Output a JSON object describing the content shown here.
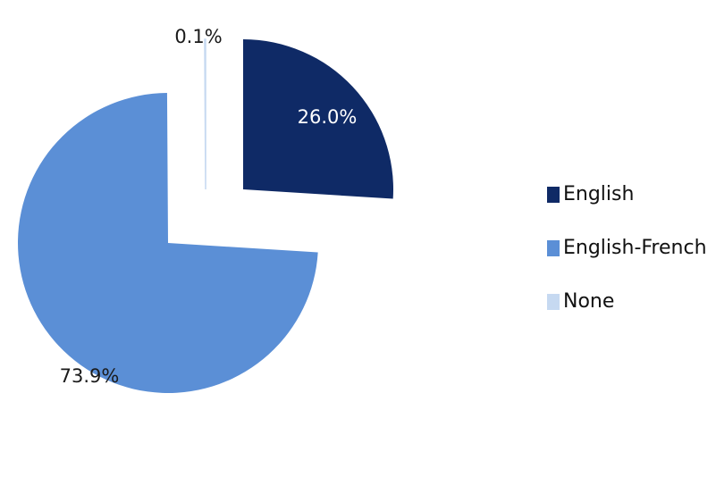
{
  "chart_data": {
    "type": "pie",
    "title": "",
    "categories": [
      "English",
      "English-French",
      "None"
    ],
    "values": [
      26.0,
      73.9,
      0.1
    ],
    "labels": [
      "26.0%",
      "73.9%",
      "0.1%"
    ],
    "colors": [
      "#0f2a66",
      "#5b8fd6",
      "#c6d9f1"
    ],
    "label_colors": [
      "#ffffff",
      "#1a1a1a",
      "#1a1a1a"
    ],
    "exploded": true,
    "start_angle_deg": 0,
    "direction": "clockwise",
    "legend_position": "right"
  }
}
